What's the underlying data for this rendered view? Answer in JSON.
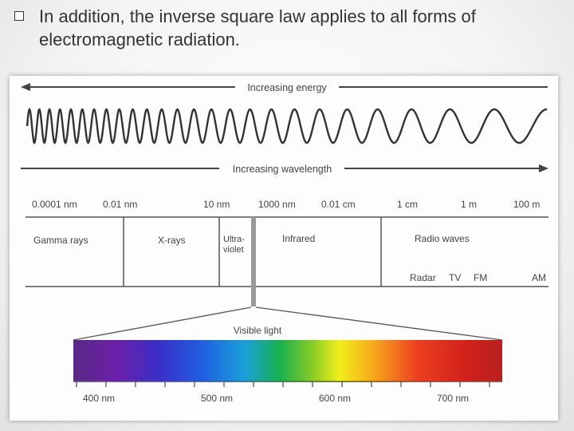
{
  "slide": {
    "bullet_text": "In addition, the inverse square law applies to all forms of electromagnetic radiation."
  },
  "figure": {
    "energy_label": "Increasing energy",
    "wavelength_label": "Increasing wavelength",
    "scale_ticks": [
      "0.0001 nm",
      "0.01 nm",
      "10 nm",
      "1000 nm",
      "0.01 cm",
      "1 cm",
      "1 m",
      "100 m"
    ],
    "regions": {
      "gamma": "Gamma rays",
      "xrays": "X-rays",
      "uv_line1": "Ultra-",
      "uv_line2": "violet",
      "infrared": "Infrared",
      "radio": "Radio waves"
    },
    "radio_bands": [
      "Radar",
      "TV",
      "FM",
      "AM"
    ],
    "visible_label": "Visible light",
    "visible_ticks": [
      "400 nm",
      "500 nm",
      "600 nm",
      "700 nm"
    ]
  }
}
